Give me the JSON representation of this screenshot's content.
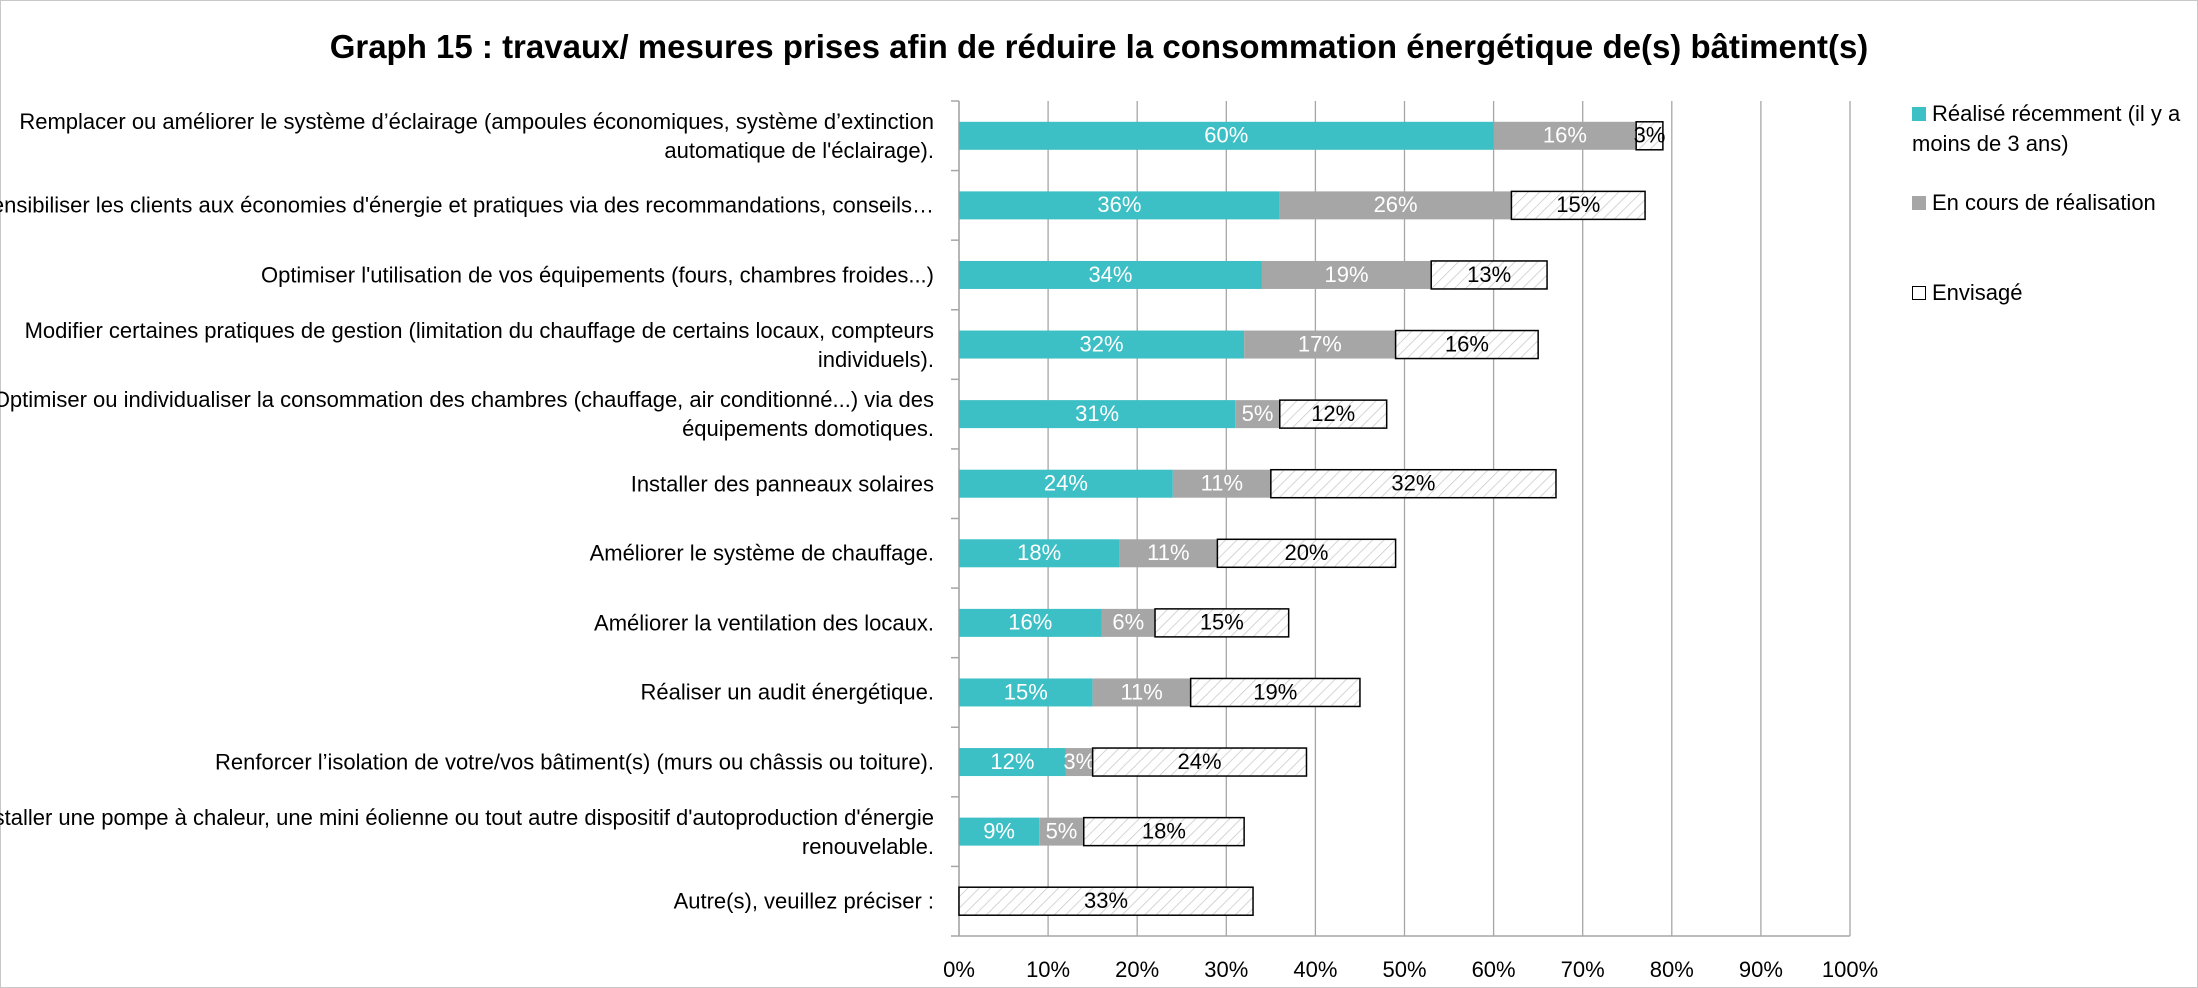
{
  "chart_data": {
    "type": "stacked_barh",
    "title": "Graph 15 : travaux/ mesures prises afin de réduire la consommation énergétique de(s) bâtiment(s)",
    "categories": [
      "Remplacer ou améliorer le système d’éclairage (ampoules économiques, système d’extinction automatique de l'éclairage).",
      "Sensibiliser les clients aux économies d'énergie et pratiques  via des recommandations, conseils…",
      "Optimiser l'utilisation de vos équipements (fours, chambres froides...)",
      "Modifier certaines pratiques de gestion (limitation du chauffage de certains locaux, compteurs individuels).",
      "Optimiser ou individualiser la consommation des chambres (chauffage, air conditionné...) via des équipements domotiques.",
      "Installer des panneaux solaires",
      "Améliorer le système de chauffage.",
      "Améliorer la ventilation des locaux.",
      "Réaliser un audit énergétique.",
      "Renforcer l’isolation de votre/vos bâtiment(s) (murs ou châssis ou toiture).",
      "Installer une pompe à chaleur, une mini éolienne ou tout autre dispositif d'autoproduction d'énergie renouvelable.",
      "Autre(s), veuillez préciser :"
    ],
    "series": [
      {
        "name": "Réalisé récemment (il y a moins de 3 ans)",
        "color": "#3cbfc5",
        "values": [
          60,
          36,
          34,
          32,
          31,
          24,
          18,
          16,
          15,
          12,
          9,
          null
        ],
        "value_labels": [
          "60%",
          "36%",
          "34%",
          "32%",
          "31%",
          "24%",
          "18%",
          "16%",
          "15%",
          "12%",
          "9%",
          null
        ]
      },
      {
        "name": "En cours de réalisation",
        "color": "#a6a6a6",
        "values": [
          16,
          26,
          19,
          17,
          5,
          11,
          11,
          6,
          11,
          3,
          5,
          null
        ],
        "value_labels": [
          "16%",
          "26%",
          "19%",
          "17%",
          "5%",
          "11%",
          "11%",
          "6%",
          "11%",
          "3%",
          "5%",
          null
        ]
      },
      {
        "name": "Envisagé",
        "color": "#ffffff",
        "values": [
          3,
          15,
          13,
          16,
          12,
          32,
          20,
          15,
          19,
          24,
          18,
          33
        ],
        "value_labels": [
          "3%",
          "15%",
          "13%",
          "16%",
          "12%",
          "32%",
          "20%",
          "15%",
          "19%",
          "24%",
          "18%",
          "33%"
        ]
      }
    ],
    "xlim": [
      0,
      100
    ],
    "xticks": [
      {
        "value": 0,
        "label": "0%"
      },
      {
        "value": 10,
        "label": "10%"
      },
      {
        "value": 20,
        "label": "20%"
      },
      {
        "value": 30,
        "label": "30%"
      },
      {
        "value": 40,
        "label": "40%"
      },
      {
        "value": 50,
        "label": "50%"
      },
      {
        "value": 60,
        "label": "60%"
      },
      {
        "value": 70,
        "label": "70%"
      },
      {
        "value": 80,
        "label": "80%"
      },
      {
        "value": 90,
        "label": "90%"
      },
      {
        "value": 100,
        "label": "100%"
      }
    ],
    "grid": true,
    "legend": "right"
  }
}
